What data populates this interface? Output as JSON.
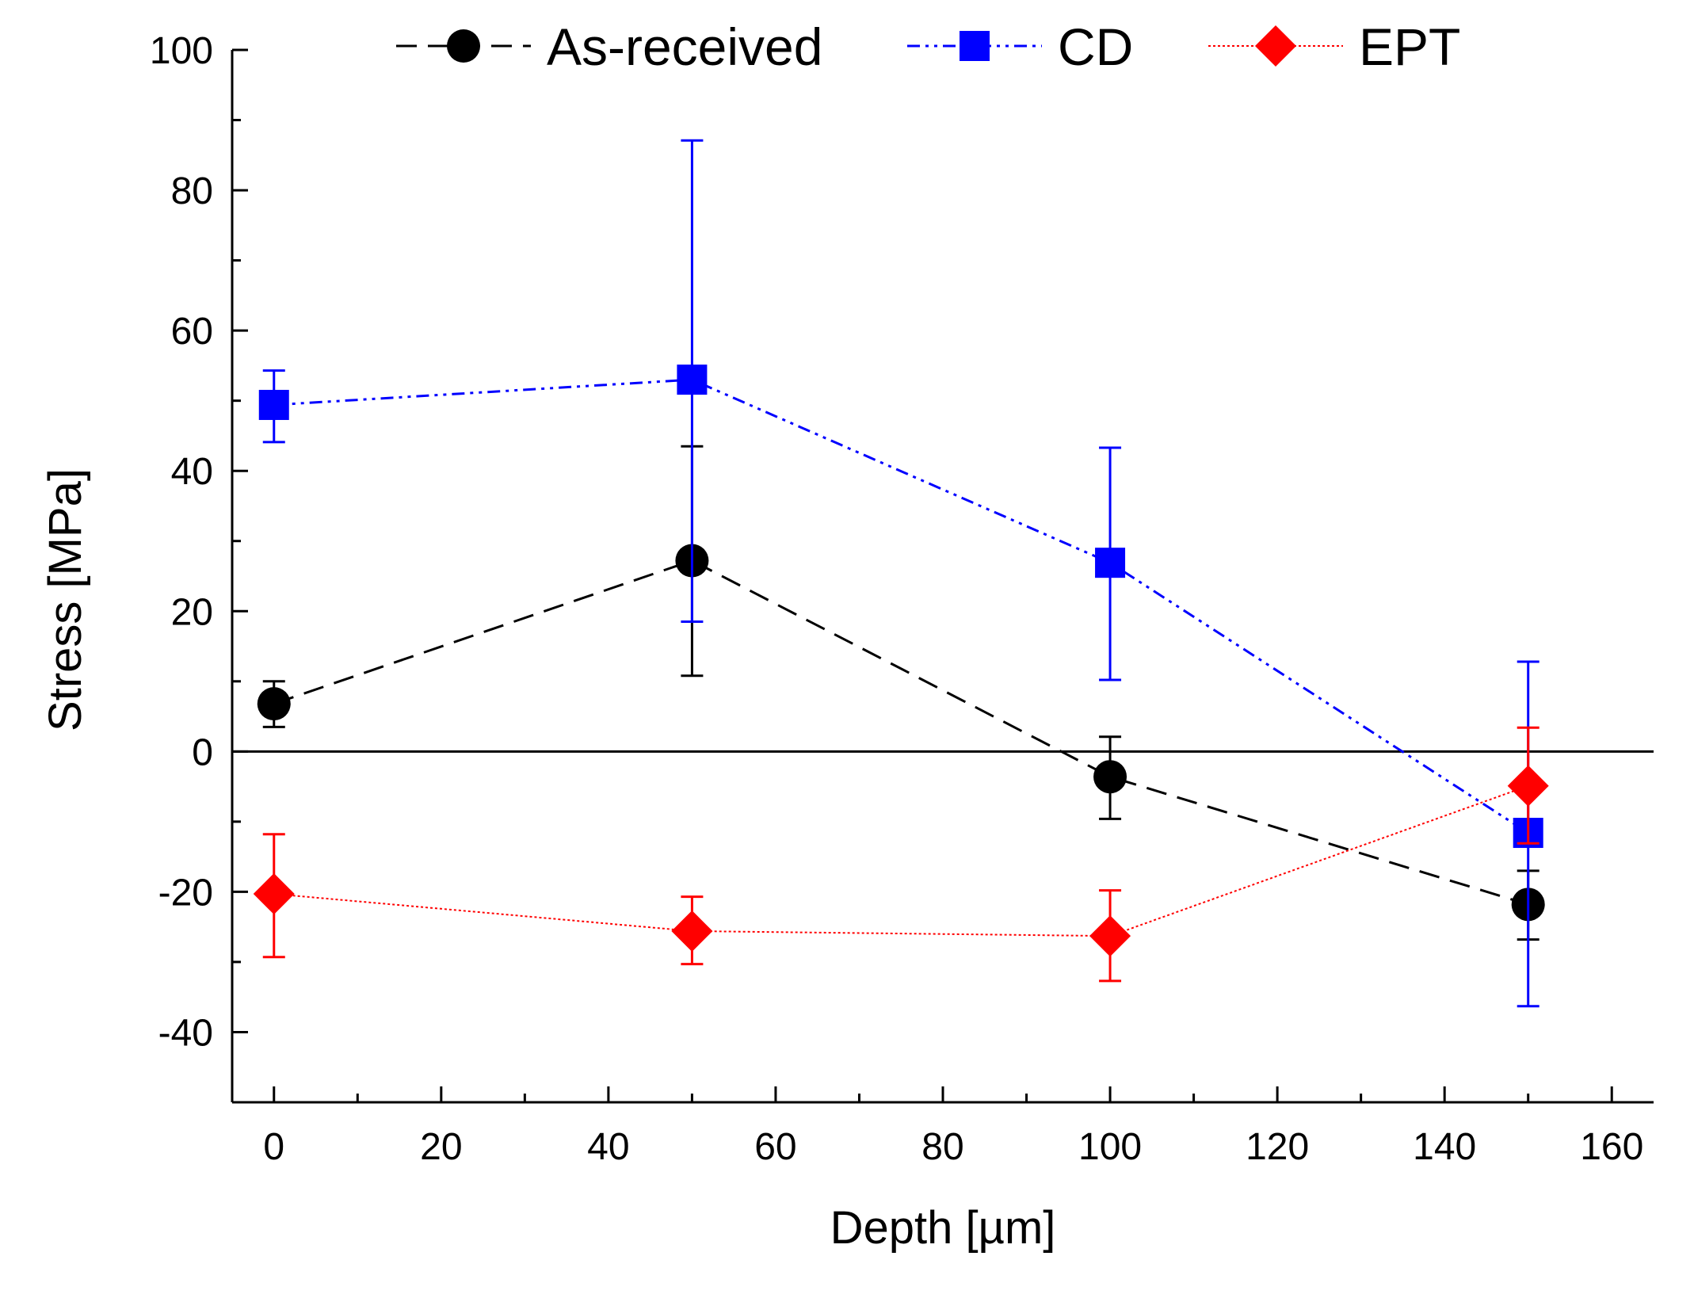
{
  "chart_data": {
    "type": "line",
    "title": "",
    "xlabel": "Depth [µm]",
    "ylabel": "Stress [MPa]",
    "xlim": [
      -5,
      165
    ],
    "ylim": [
      -50,
      100
    ],
    "x_ticks": [
      0,
      20,
      40,
      60,
      80,
      100,
      120,
      140,
      160
    ],
    "y_ticks": [
      -40,
      -20,
      0,
      20,
      40,
      60,
      80,
      100
    ],
    "x_tick_labels": [
      "0",
      "20",
      "40",
      "60",
      "80",
      "100",
      "120",
      "140",
      "160"
    ],
    "y_tick_labels": [
      "-40",
      "-20",
      "0",
      "20",
      "40",
      "60",
      "80",
      "100"
    ],
    "zero_line": true,
    "legend_position": "top",
    "series": [
      {
        "name": "As-received",
        "color": "#000000",
        "line_style": "dashed",
        "marker": "circle",
        "x": [
          0,
          50,
          100,
          150
        ],
        "y": [
          6.8,
          27.2,
          -3.6,
          -21.8
        ],
        "err_upper": [
          10.0,
          43.5,
          2.1,
          -17.0
        ],
        "err_lower": [
          3.5,
          10.8,
          -9.6,
          -26.8
        ]
      },
      {
        "name": "CD",
        "color": "#0000ff",
        "line_style": "dash-dot-dot",
        "marker": "square",
        "x": [
          0,
          50,
          100,
          150
        ],
        "y": [
          49.4,
          53.0,
          26.9,
          -11.6
        ],
        "err_upper": [
          54.3,
          87.1,
          43.3,
          12.8
        ],
        "err_lower": [
          44.1,
          18.5,
          10.2,
          -36.3
        ]
      },
      {
        "name": "EPT",
        "color": "#ff0000",
        "line_style": "dotted",
        "marker": "diamond",
        "x": [
          0,
          50,
          100,
          150
        ],
        "y": [
          -20.3,
          -25.6,
          -26.3,
          -4.9
        ],
        "err_upper": [
          -11.8,
          -20.7,
          -19.8,
          3.4
        ],
        "err_lower": [
          -29.3,
          -30.3,
          -32.7,
          -13.1
        ]
      }
    ]
  }
}
